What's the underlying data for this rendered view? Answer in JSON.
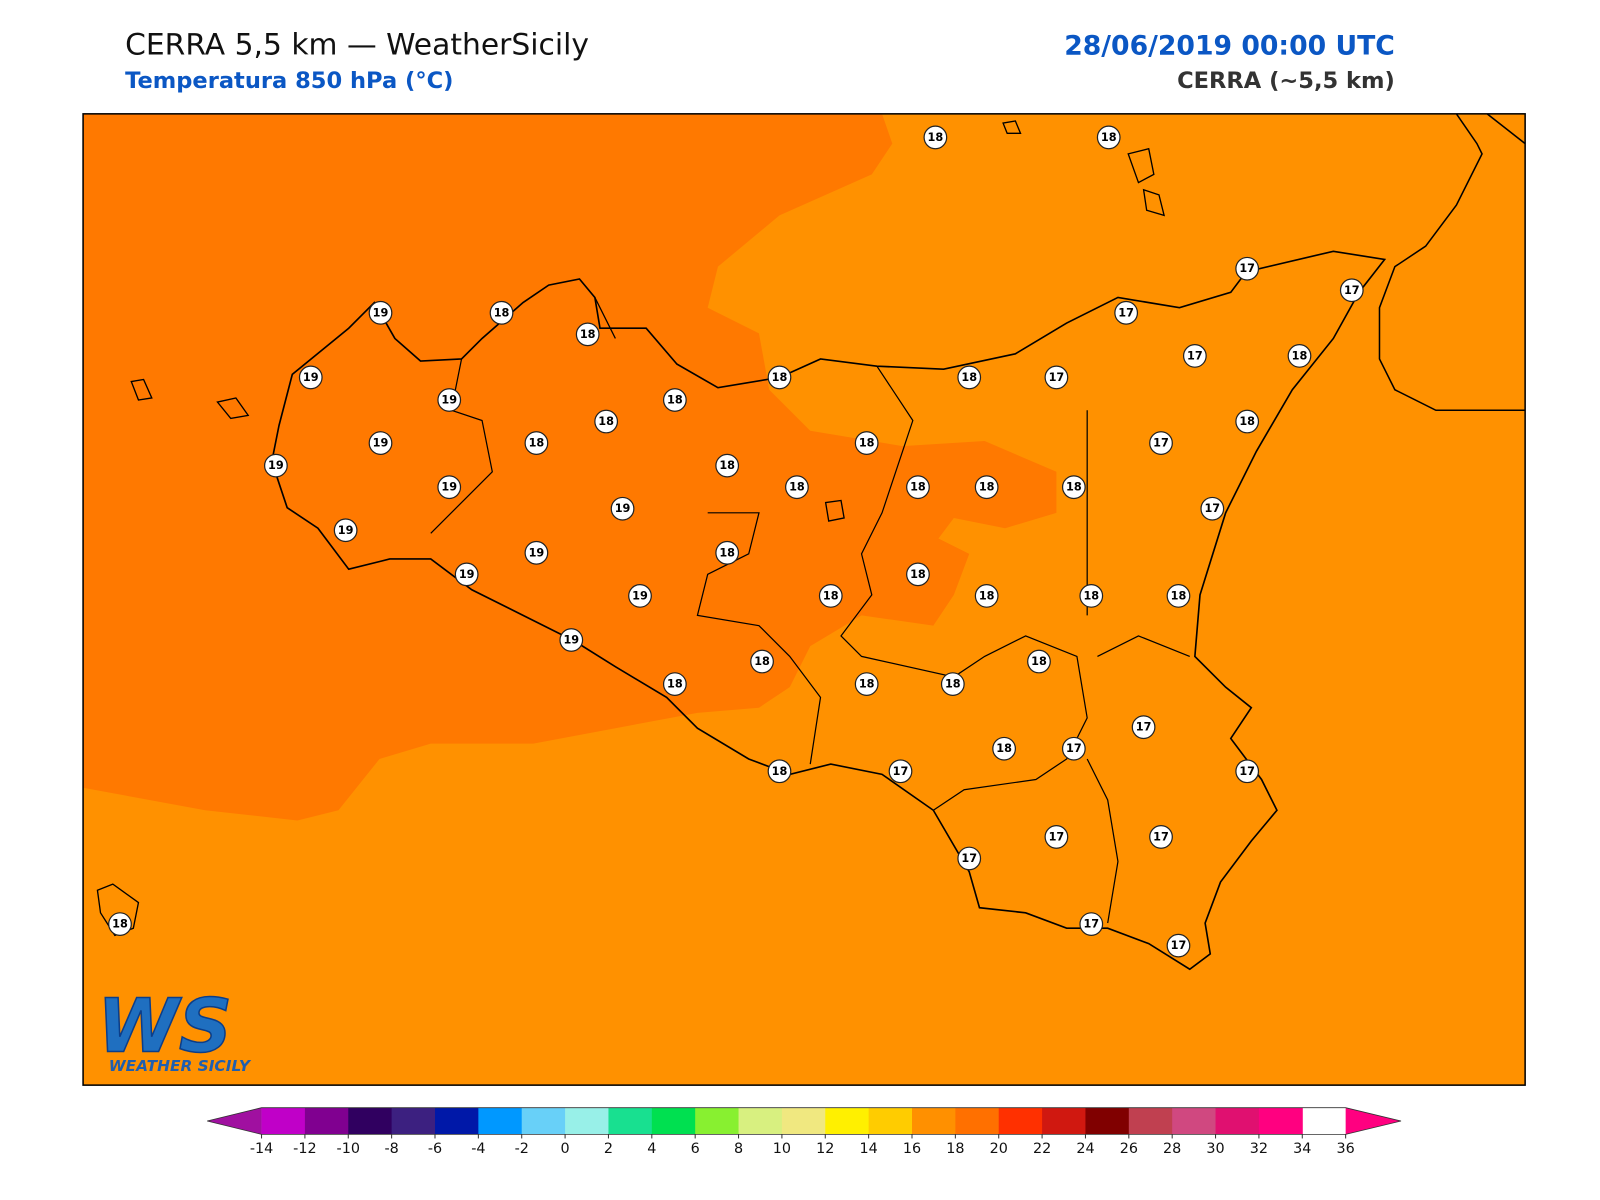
{
  "header": {
    "title": "CERRA 5,5 km — WeatherSicily",
    "subtitle": "Temperatura 850 hPa (°C)",
    "datetime": "28/06/2019 00:00 UTC",
    "model": "CERRA (~5,5 km)"
  },
  "logo": {
    "mark": "WS",
    "name": "WEATHER SICILY"
  },
  "map": {
    "fill_colors": [
      "#ff9100",
      "#ff7900"
    ]
  },
  "stations": [
    18,
    18,
    17,
    17,
    19,
    18,
    18,
    17,
    19,
    18,
    18,
    17,
    17,
    18,
    19,
    18,
    18,
    18,
    19,
    18,
    18,
    17,
    19,
    18,
    19,
    18,
    18,
    18,
    18,
    19,
    17,
    19,
    19,
    18,
    19,
    18,
    19,
    18,
    18,
    18,
    18,
    19,
    18,
    18,
    18,
    18,
    18,
    17,
    18,
    17,
    18,
    17,
    17,
    17,
    17,
    17,
    18,
    17,
    17
  ],
  "colorbar": {
    "ticks": [
      -14,
      -12,
      -10,
      -8,
      -6,
      -4,
      -2,
      0,
      2,
      4,
      6,
      8,
      10,
      12,
      14,
      16,
      18,
      20,
      22,
      24,
      26,
      28,
      30,
      32,
      34,
      36
    ],
    "colors": [
      "#c000c8",
      "#800090",
      "#300060",
      "#3c2080",
      "#0018a8",
      "#0098ff",
      "#68d0f8",
      "#98f0e8",
      "#18e090",
      "#00e050",
      "#88f030",
      "#d8f080",
      "#f0e880",
      "#fff000",
      "#ffcc00",
      "#ff9000",
      "#ff7000",
      "#ff3000",
      "#d01810",
      "#800000",
      "#c04050",
      "#d04880",
      "#e01070",
      "#ff0080"
    ],
    "extend_colors": [
      "#a010a0",
      "#ff0080"
    ]
  }
}
